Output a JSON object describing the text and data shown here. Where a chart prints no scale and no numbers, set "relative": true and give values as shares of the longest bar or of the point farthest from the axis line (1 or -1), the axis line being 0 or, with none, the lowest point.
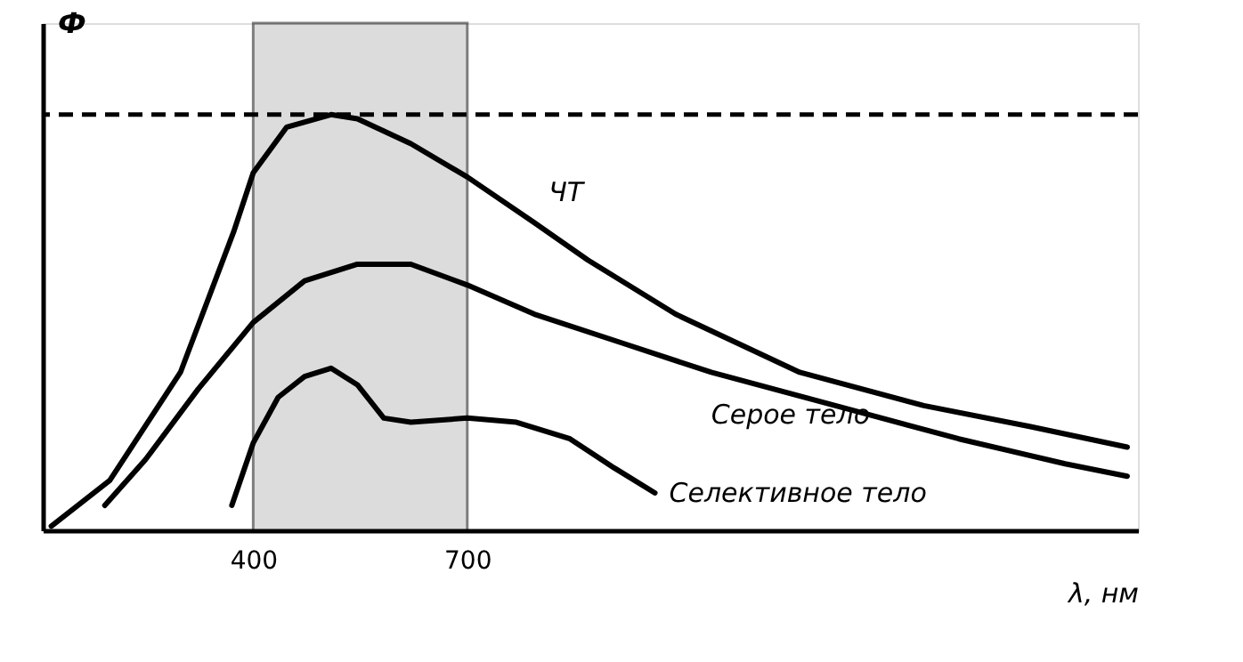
{
  "chart_data": {
    "type": "line",
    "relative": true,
    "xlabel": "λ, нм",
    "ylabel": "Ф",
    "xlim": [
      105,
      1640
    ],
    "xticks": [
      400,
      700
    ],
    "grid": false,
    "marker": "none",
    "line_style": "solid",
    "ref_lines": [
      {
        "axis": "y",
        "value": 1,
        "line_style": "dashed",
        "color": "#000000"
      }
    ],
    "bands": [
      {
        "axis": "x",
        "from": 400,
        "to": 700,
        "color": "#bbbbbb"
      }
    ],
    "series": [
      {
        "name": "ЧТ",
        "color": "#000000",
        "x": [
          117,
          199,
          298,
          373,
          400,
          447,
          509,
          546,
          621,
          700,
          794,
          869,
          992,
          1166,
          1340,
          1488,
          1625
        ],
        "values": [
          0.01,
          0.12,
          0.38,
          0.72,
          0.86,
          0.97,
          1.0,
          0.99,
          0.93,
          0.85,
          0.74,
          0.65,
          0.52,
          0.38,
          0.3,
          0.25,
          0.2
        ]
      },
      {
        "name": "Серое тело",
        "color": "#000000",
        "x": [
          192,
          249,
          323,
          400,
          472,
          546,
          621,
          700,
          794,
          918,
          1042,
          1216,
          1389,
          1538,
          1625
        ],
        "values": [
          0.06,
          0.17,
          0.34,
          0.5,
          0.6,
          0.64,
          0.64,
          0.59,
          0.52,
          0.45,
          0.38,
          0.3,
          0.22,
          0.16,
          0.13
        ]
      },
      {
        "name": "Селективное тело",
        "color": "#000000",
        "x": [
          370,
          400,
          435,
          472,
          509,
          546,
          583,
          621,
          700,
          769,
          844,
          906,
          963
        ],
        "values": [
          0.06,
          0.21,
          0.32,
          0.37,
          0.39,
          0.35,
          0.27,
          0.26,
          0.27,
          0.26,
          0.22,
          0.15,
          0.09
        ]
      }
    ]
  }
}
